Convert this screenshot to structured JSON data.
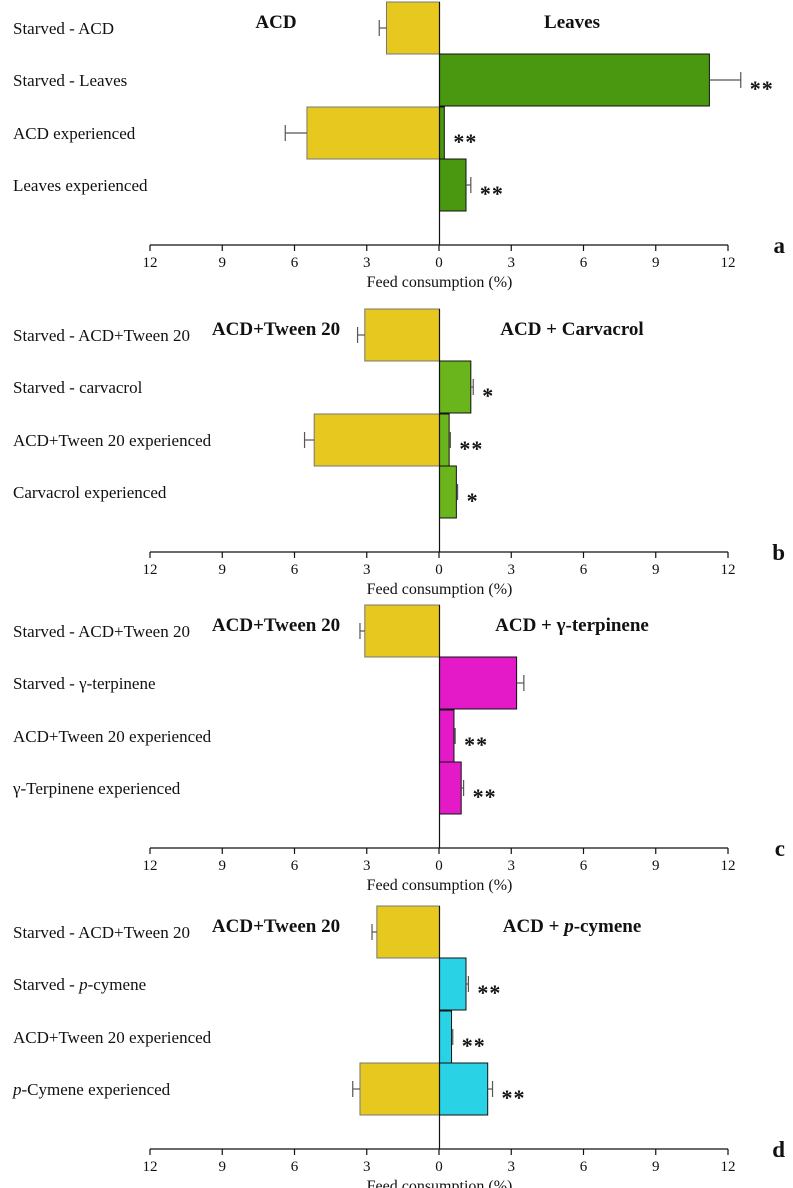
{
  "chart_data": [
    {
      "type": "bar",
      "orientation": "horizontal-back-to-back",
      "panel_letter": "a",
      "left_group": "ACD",
      "right_group": "Leaves",
      "xlabel": "Feed consumption (%)",
      "xlim": [
        -12,
        12
      ],
      "xticks": [
        12,
        9,
        6,
        3,
        0,
        3,
        6,
        9,
        12
      ],
      "colors": {
        "left": "#E6C81E",
        "right": "#4A9810"
      },
      "categories": [
        "Starved - ACD",
        "Starved - Leaves",
        "ACD experienced",
        "Leaves experienced"
      ],
      "series": [
        {
          "values": [
            -2.2,
            0,
            -5.5,
            0
          ],
          "errors": [
            0.3,
            0,
            0.9,
            0
          ]
        },
        {
          "values": [
            0,
            11.2,
            0.2,
            1.1
          ],
          "errors": [
            0,
            1.3,
            0,
            0.2
          ]
        }
      ],
      "significance": [
        "",
        "**",
        "**",
        "**"
      ]
    },
    {
      "type": "bar",
      "orientation": "horizontal-back-to-back",
      "panel_letter": "b",
      "left_group": "ACD+Tween 20",
      "right_group": "ACD + Carvacrol",
      "xlabel": "Feed consumption (%)",
      "xlim": [
        -12,
        12
      ],
      "xticks": [
        12,
        9,
        6,
        3,
        0,
        3,
        6,
        9,
        12
      ],
      "colors": {
        "left": "#E6C81E",
        "right": "#6AB41C"
      },
      "categories": [
        "Starved - ACD+Tween 20",
        "Starved - carvacrol",
        "ACD+Tween 20 experienced",
        "Carvacrol experienced"
      ],
      "series": [
        {
          "values": [
            -3.1,
            0,
            -5.2,
            0
          ],
          "errors": [
            0.3,
            0,
            0.4,
            0
          ]
        },
        {
          "values": [
            0,
            1.3,
            0.4,
            0.7
          ],
          "errors": [
            0,
            0.1,
            0.05,
            0.05
          ]
        }
      ],
      "significance": [
        "",
        "*",
        "**",
        "*"
      ]
    },
    {
      "type": "bar",
      "orientation": "horizontal-back-to-back",
      "panel_letter": "c",
      "left_group": "ACD+Tween 20",
      "right_group": "ACD + γ-terpinene",
      "xlabel": "Feed consumption (%)",
      "xlim": [
        -12,
        12
      ],
      "xticks": [
        12,
        9,
        6,
        3,
        0,
        3,
        6,
        9,
        12
      ],
      "colors": {
        "left": "#E6C81E",
        "right": "#E41AC9"
      },
      "categories": [
        "Starved - ACD+Tween 20",
        "Starved - γ-terpinene",
        "ACD+Tween 20 experienced",
        "γ-Terpinene experienced"
      ],
      "series": [
        {
          "values": [
            -3.1,
            0,
            0,
            0
          ],
          "errors": [
            0.2,
            0,
            0,
            0
          ]
        },
        {
          "values": [
            0,
            3.2,
            0.6,
            0.9
          ],
          "errors": [
            0,
            0.3,
            0.05,
            0.1
          ]
        }
      ],
      "significance": [
        "",
        "",
        "**",
        "**"
      ]
    },
    {
      "type": "bar",
      "orientation": "horizontal-back-to-back",
      "panel_letter": "d",
      "left_group": "ACD+Tween 20",
      "right_group_prefix": "ACD + ",
      "right_group_italic": "p",
      "right_group_suffix": "-cymene",
      "xlabel": "Feed consumption (%)",
      "xlim": [
        -12,
        12
      ],
      "xticks": [
        12,
        9,
        6,
        3,
        0,
        3,
        6,
        9,
        12
      ],
      "colors": {
        "left": "#E6C81E",
        "right": "#2AD2E6"
      },
      "categories": [
        {
          "text": "Starved - ACD+Tween 20"
        },
        {
          "prefix": "Starved - ",
          "italic": "p",
          "suffix": "-cymene"
        },
        {
          "text": "ACD+Tween 20 experienced"
        },
        {
          "prefix": "",
          "italic": "p",
          "suffix": "-Cymene experienced"
        }
      ],
      "series": [
        {
          "values": [
            -2.6,
            0,
            0,
            -3.3
          ],
          "errors": [
            0.2,
            0,
            0,
            0.3
          ]
        },
        {
          "values": [
            0,
            1.1,
            0.5,
            2.0
          ],
          "errors": [
            0,
            0.1,
            0.05,
            0.2
          ]
        }
      ],
      "significance": [
        "",
        "**",
        "**",
        "**"
      ]
    }
  ]
}
